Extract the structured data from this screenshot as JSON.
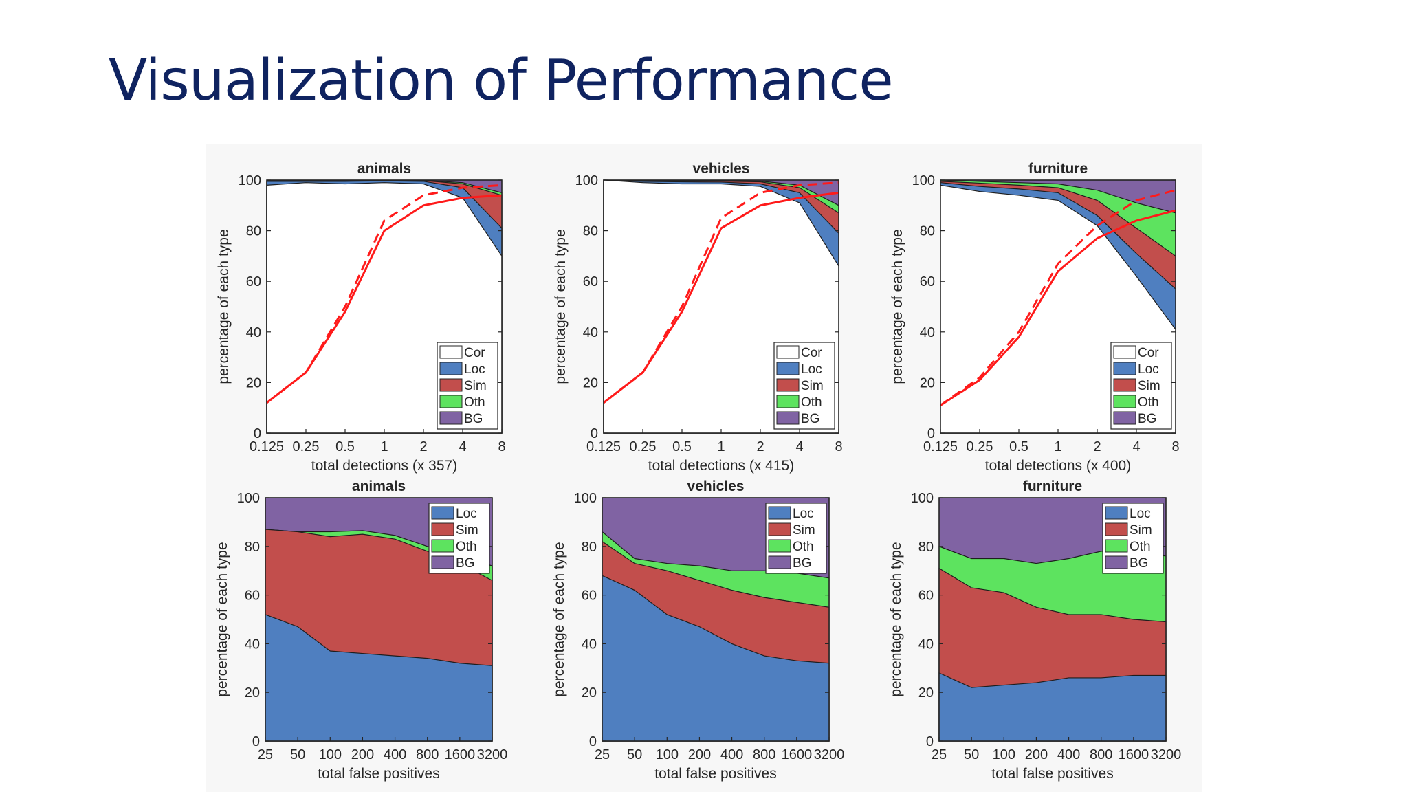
{
  "slide": {
    "title": "Visualization of Performance"
  },
  "legend_colors": {
    "Cor": "#ffffff",
    "Loc": "#4f7fc0",
    "Sim": "#c24e4c",
    "Oth": "#5de35f",
    "BG": "#8063a3"
  },
  "curve_color": "#ff1a1a",
  "chart_data": [
    {
      "type": "area",
      "title": "animals",
      "xlabel": "total detections (x 357)",
      "ylabel": "percentage of each type",
      "x_ticks": [
        "0.125",
        "0.25",
        "0.5",
        "1",
        "2",
        "4",
        "8"
      ],
      "y_ticks": [
        "0",
        "20",
        "40",
        "60",
        "80",
        "100"
      ],
      "ylim": [
        0,
        100
      ],
      "legend": [
        "Cor",
        "Loc",
        "Sim",
        "Oth",
        "BG"
      ],
      "legend_position": "bottom-right",
      "series": [
        {
          "name": "Cor",
          "values": [
            98,
            99,
            98.5,
            99,
            98.5,
            93,
            70
          ]
        },
        {
          "name": "Loc",
          "values": [
            99.5,
            99.5,
            99.5,
            99.7,
            99.5,
            97,
            81
          ]
        },
        {
          "name": "Sim",
          "values": [
            99.7,
            99.8,
            99.8,
            99.9,
            99.8,
            98.5,
            94
          ]
        },
        {
          "name": "Oth",
          "values": [
            99.8,
            99.9,
            99.9,
            99.9,
            99.9,
            99,
            95
          ]
        },
        {
          "name": "BG",
          "values": [
            100,
            100,
            100,
            100,
            100,
            100,
            100
          ]
        }
      ],
      "curves": [
        {
          "style": "solid",
          "values": [
            12,
            24,
            48,
            80,
            90,
            93,
            94
          ]
        },
        {
          "style": "dashed",
          "values": [
            12,
            24,
            50,
            84,
            94,
            97,
            98
          ]
        }
      ]
    },
    {
      "type": "area",
      "title": "vehicles",
      "xlabel": "total detections (x 415)",
      "ylabel": "percentage of each type",
      "x_ticks": [
        "0.125",
        "0.25",
        "0.5",
        "1",
        "2",
        "4",
        "8"
      ],
      "y_ticks": [
        "0",
        "20",
        "40",
        "60",
        "80",
        "100"
      ],
      "ylim": [
        0,
        100
      ],
      "legend": [
        "Cor",
        "Loc",
        "Sim",
        "Oth",
        "BG"
      ],
      "legend_position": "bottom-right",
      "series": [
        {
          "name": "Cor",
          "values": [
            100,
            99,
            98.5,
            98.5,
            97.5,
            91,
            66
          ]
        },
        {
          "name": "Loc",
          "values": [
            100,
            99.5,
            99.3,
            99.2,
            98.5,
            95,
            79
          ]
        },
        {
          "name": "Sim",
          "values": [
            100,
            99.7,
            99.6,
            99.6,
            99.3,
            97,
            87
          ]
        },
        {
          "name": "Oth",
          "values": [
            100,
            99.8,
            99.8,
            99.8,
            99.6,
            98,
            90
          ]
        },
        {
          "name": "BG",
          "values": [
            100,
            100,
            100,
            100,
            100,
            100,
            100
          ]
        }
      ],
      "curves": [
        {
          "style": "solid",
          "values": [
            12,
            24,
            48,
            81,
            90,
            93,
            95
          ]
        },
        {
          "style": "dashed",
          "values": [
            12,
            24,
            50,
            85,
            95,
            98,
            99
          ]
        }
      ]
    },
    {
      "type": "area",
      "title": "furniture",
      "xlabel": "total detections (x 400)",
      "ylabel": "percentage of each type",
      "x_ticks": [
        "0.125",
        "0.25",
        "0.5",
        "1",
        "2",
        "4",
        "8"
      ],
      "y_ticks": [
        "0",
        "20",
        "40",
        "60",
        "80",
        "100"
      ],
      "ylim": [
        0,
        100
      ],
      "legend": [
        "Cor",
        "Loc",
        "Sim",
        "Oth",
        "BG"
      ],
      "legend_position": "bottom-right",
      "series": [
        {
          "name": "Cor",
          "values": [
            98,
            95.5,
            94,
            92,
            82,
            62,
            41
          ]
        },
        {
          "name": "Loc",
          "values": [
            99,
            97.5,
            96.5,
            95,
            86,
            71,
            57
          ]
        },
        {
          "name": "Sim",
          "values": [
            99.5,
            98.8,
            98,
            97,
            92,
            81,
            70
          ]
        },
        {
          "name": "Oth",
          "values": [
            100,
            99.5,
            99,
            98.5,
            96,
            91,
            87
          ]
        },
        {
          "name": "BG",
          "values": [
            100,
            100,
            100,
            100,
            100,
            100,
            100
          ]
        }
      ],
      "curves": [
        {
          "style": "solid",
          "values": [
            11,
            21,
            38,
            64,
            77,
            84,
            88
          ]
        },
        {
          "style": "dashed",
          "values": [
            11,
            22,
            40,
            67,
            82,
            92,
            96
          ]
        }
      ]
    },
    {
      "type": "area",
      "title": "animals",
      "xlabel": "total false positives",
      "ylabel": "percentage of each type",
      "x_ticks": [
        "25",
        "50",
        "100",
        "200",
        "400",
        "800",
        "1600",
        "3200"
      ],
      "y_ticks": [
        "0",
        "20",
        "40",
        "60",
        "80",
        "100"
      ],
      "ylim": [
        0,
        100
      ],
      "legend": [
        "Loc",
        "Sim",
        "Oth",
        "BG"
      ],
      "legend_position": "top-right",
      "series": [
        {
          "name": "Loc",
          "values": [
            52,
            47,
            37,
            36,
            35,
            34,
            32,
            31
          ]
        },
        {
          "name": "Sim",
          "values": [
            87,
            86,
            84,
            85,
            83,
            78,
            73,
            66
          ]
        },
        {
          "name": "Oth",
          "values": [
            87,
            86,
            86,
            86.5,
            84.5,
            80,
            76,
            72
          ]
        },
        {
          "name": "BG",
          "values": [
            100,
            100,
            100,
            100,
            100,
            100,
            100,
            100
          ]
        }
      ]
    },
    {
      "type": "area",
      "title": "vehicles",
      "xlabel": "total false positives",
      "ylabel": "percentage of each type",
      "x_ticks": [
        "25",
        "50",
        "100",
        "200",
        "400",
        "800",
        "1600",
        "3200"
      ],
      "y_ticks": [
        "0",
        "20",
        "40",
        "60",
        "80",
        "100"
      ],
      "ylim": [
        0,
        100
      ],
      "legend": [
        "Loc",
        "Sim",
        "Oth",
        "BG"
      ],
      "legend_position": "top-right",
      "series": [
        {
          "name": "Loc",
          "values": [
            68,
            62,
            52,
            47,
            40,
            35,
            33,
            32
          ]
        },
        {
          "name": "Sim",
          "values": [
            82,
            73,
            70,
            66,
            62,
            59,
            57,
            55
          ]
        },
        {
          "name": "Oth",
          "values": [
            86,
            75,
            73,
            72,
            70,
            70,
            69,
            67
          ]
        },
        {
          "name": "BG",
          "values": [
            100,
            100,
            100,
            100,
            100,
            100,
            100,
            100
          ]
        }
      ]
    },
    {
      "type": "area",
      "title": "furniture",
      "xlabel": "total false positives",
      "ylabel": "percentage of each type",
      "x_ticks": [
        "25",
        "50",
        "100",
        "200",
        "400",
        "800",
        "1600",
        "3200"
      ],
      "y_ticks": [
        "0",
        "20",
        "40",
        "60",
        "80",
        "100"
      ],
      "ylim": [
        0,
        100
      ],
      "legend": [
        "Loc",
        "Sim",
        "Oth",
        "BG"
      ],
      "legend_position": "top-right",
      "series": [
        {
          "name": "Loc",
          "values": [
            28,
            22,
            23,
            24,
            26,
            26,
            27,
            27
          ]
        },
        {
          "name": "Sim",
          "values": [
            71,
            63,
            61,
            55,
            52,
            52,
            50,
            49
          ]
        },
        {
          "name": "Oth",
          "values": [
            80,
            75,
            75,
            73,
            75,
            78,
            78,
            76
          ]
        },
        {
          "name": "BG",
          "values": [
            100,
            100,
            100,
            100,
            100,
            100,
            100,
            100
          ]
        }
      ]
    }
  ]
}
